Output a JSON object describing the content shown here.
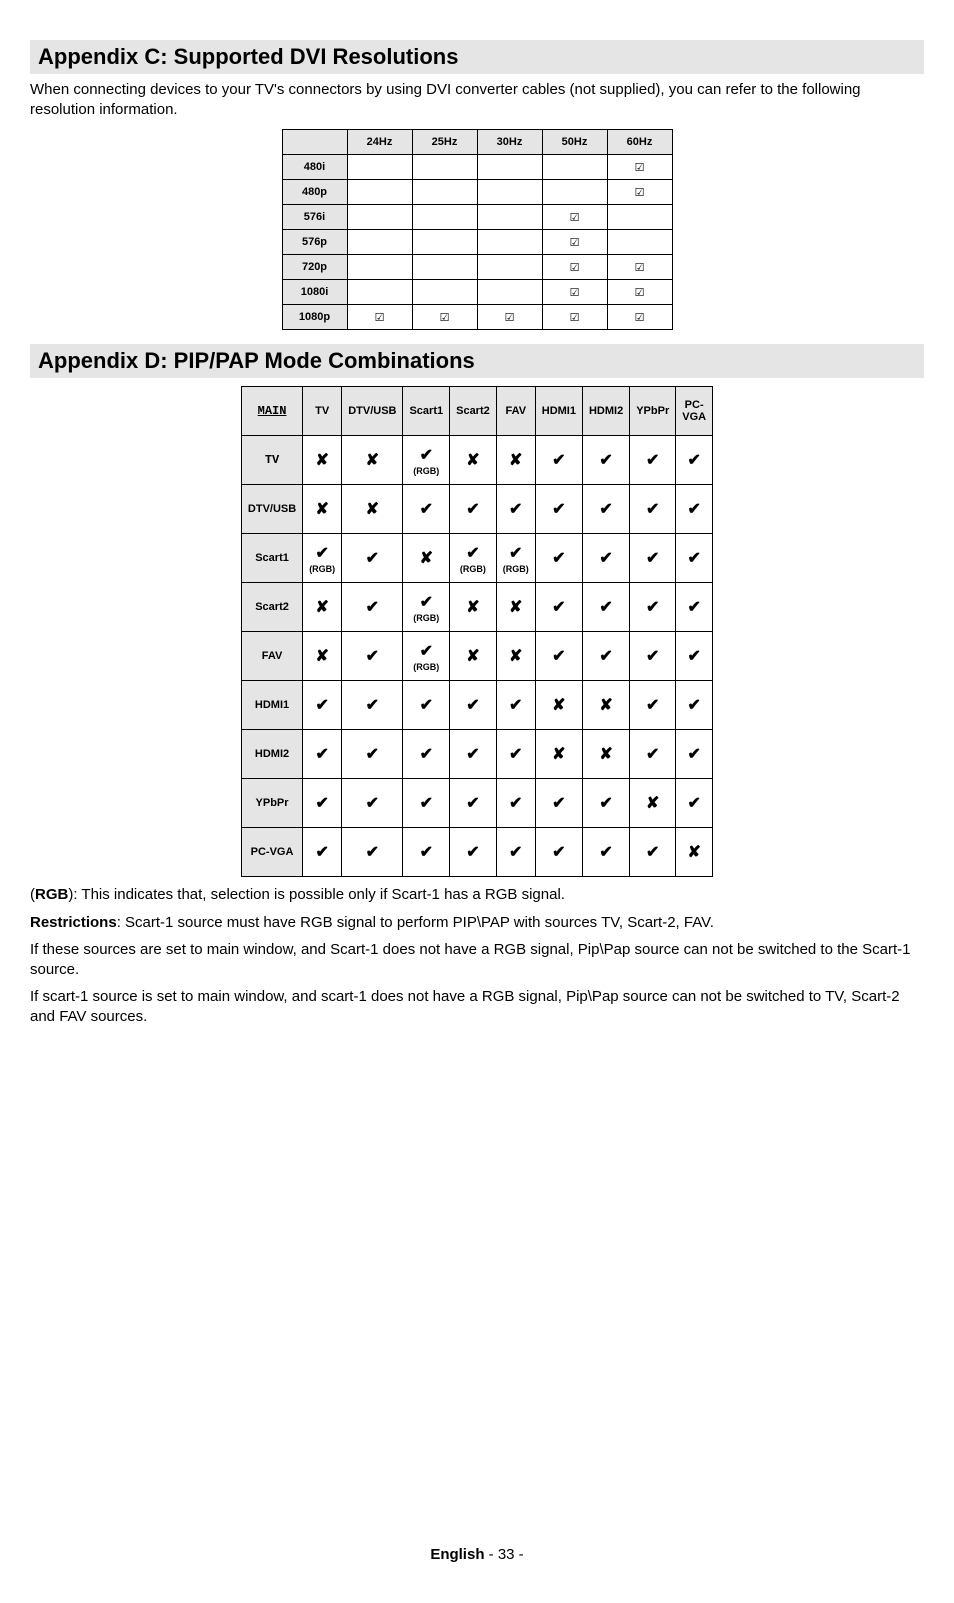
{
  "appendixC": {
    "title": "Appendix C: Supported DVI Resolutions",
    "intro": "When connecting devices to your TV's connectors by using DVI converter cables (not supplied), you can refer to the following resolution information.",
    "cols": [
      "",
      "24Hz",
      "25Hz",
      "30Hz",
      "50Hz",
      "60Hz"
    ],
    "rows": [
      {
        "label": "480i",
        "cells": [
          "",
          "",
          "",
          "",
          "☑"
        ]
      },
      {
        "label": "480p",
        "cells": [
          "",
          "",
          "",
          "",
          "☑"
        ]
      },
      {
        "label": "576i",
        "cells": [
          "",
          "",
          "",
          "☑",
          ""
        ]
      },
      {
        "label": "576p",
        "cells": [
          "",
          "",
          "",
          "☑",
          ""
        ]
      },
      {
        "label": "720p",
        "cells": [
          "",
          "",
          "",
          "☑",
          "☑"
        ]
      },
      {
        "label": "1080i",
        "cells": [
          "",
          "",
          "",
          "☑",
          "☑"
        ]
      },
      {
        "label": "1080p",
        "cells": [
          "☑",
          "☑",
          "☑",
          "☑",
          "☑"
        ]
      }
    ]
  },
  "appendixD": {
    "title": "Appendix D: PIP/PAP Mode Combinations",
    "cols": [
      "MAIN",
      "TV",
      "DTV/USB",
      "Scart1",
      "Scart2",
      "FAV",
      "HDMI1",
      "HDMI2",
      "YPbPr",
      "PC-VGA"
    ],
    "rows": [
      {
        "label": "TV",
        "labelClass": "tv-label",
        "cells": [
          {
            "v": "✘"
          },
          {
            "v": "✘"
          },
          {
            "v": "✔",
            "sub": "(RGB)"
          },
          {
            "v": "✘"
          },
          {
            "v": "✘"
          },
          {
            "v": "✔"
          },
          {
            "v": "✔"
          },
          {
            "v": "✔"
          },
          {
            "v": "✔"
          }
        ]
      },
      {
        "label": "DTV/USB",
        "cells": [
          {
            "v": "✘"
          },
          {
            "v": "✘"
          },
          {
            "v": "✔"
          },
          {
            "v": "✔"
          },
          {
            "v": "✔"
          },
          {
            "v": "✔"
          },
          {
            "v": "✔"
          },
          {
            "v": "✔"
          },
          {
            "v": "✔"
          }
        ]
      },
      {
        "label": "Scart1",
        "cells": [
          {
            "v": "✔",
            "sub": "(RGB)"
          },
          {
            "v": "✔"
          },
          {
            "v": "✘"
          },
          {
            "v": "✔",
            "sub": "(RGB)"
          },
          {
            "v": "✔",
            "sub": "(RGB)"
          },
          {
            "v": "✔"
          },
          {
            "v": "✔"
          },
          {
            "v": "✔"
          },
          {
            "v": "✔"
          }
        ]
      },
      {
        "label": "Scart2",
        "cells": [
          {
            "v": "✘"
          },
          {
            "v": "✔"
          },
          {
            "v": "✔",
            "sub": "(RGB)"
          },
          {
            "v": "✘"
          },
          {
            "v": "✘"
          },
          {
            "v": "✔"
          },
          {
            "v": "✔"
          },
          {
            "v": "✔"
          },
          {
            "v": "✔"
          }
        ]
      },
      {
        "label": "FAV",
        "cells": [
          {
            "v": "✘"
          },
          {
            "v": "✔"
          },
          {
            "v": "✔",
            "sub": "(RGB)"
          },
          {
            "v": "✘"
          },
          {
            "v": "✘"
          },
          {
            "v": "✔"
          },
          {
            "v": "✔"
          },
          {
            "v": "✔"
          },
          {
            "v": "✔"
          }
        ]
      },
      {
        "label": "HDMI1",
        "cells": [
          {
            "v": "✔"
          },
          {
            "v": "✔"
          },
          {
            "v": "✔"
          },
          {
            "v": "✔"
          },
          {
            "v": "✔"
          },
          {
            "v": "✘"
          },
          {
            "v": "✘"
          },
          {
            "v": "✔"
          },
          {
            "v": "✔"
          }
        ]
      },
      {
        "label": "HDMI2",
        "cells": [
          {
            "v": "✔"
          },
          {
            "v": "✔"
          },
          {
            "v": "✔"
          },
          {
            "v": "✔"
          },
          {
            "v": "✔"
          },
          {
            "v": "✘"
          },
          {
            "v": "✘"
          },
          {
            "v": "✔"
          },
          {
            "v": "✔"
          }
        ]
      },
      {
        "label": "YPbPr",
        "cells": [
          {
            "v": "✔"
          },
          {
            "v": "✔"
          },
          {
            "v": "✔"
          },
          {
            "v": "✔"
          },
          {
            "v": "✔"
          },
          {
            "v": "✔"
          },
          {
            "v": "✔"
          },
          {
            "v": "✘"
          },
          {
            "v": "✔"
          }
        ]
      },
      {
        "label": "PC-VGA",
        "cells": [
          {
            "v": "✔"
          },
          {
            "v": "✔"
          },
          {
            "v": "✔"
          },
          {
            "v": "✔"
          },
          {
            "v": "✔"
          },
          {
            "v": "✔"
          },
          {
            "v": "✔"
          },
          {
            "v": "✔"
          },
          {
            "v": "✘"
          }
        ]
      }
    ],
    "notes": {
      "rgb_label": "RGB",
      "rgb_text": "): This indicates that, selection is possible only if Scart-1 has a RGB signal.",
      "restrict_label": "Restrictions",
      "restrict_text": ": Scart-1 source must have RGB signal to perform PIP\\PAP with sources TV, Scart-2, FAV.",
      "p3": "If these sources are set to main window, and Scart-1 does not have a RGB signal, Pip\\Pap source can not be switched to the Scart-1 source.",
      "p4": "If scart-1 source is set to main window, and scart-1 does not have a RGB signal, Pip\\Pap source can not be switched to TV, Scart-2 and FAV sources."
    }
  },
  "footer": {
    "lang": "English",
    "sep": "   - ",
    "page": "33",
    "after": " -"
  }
}
